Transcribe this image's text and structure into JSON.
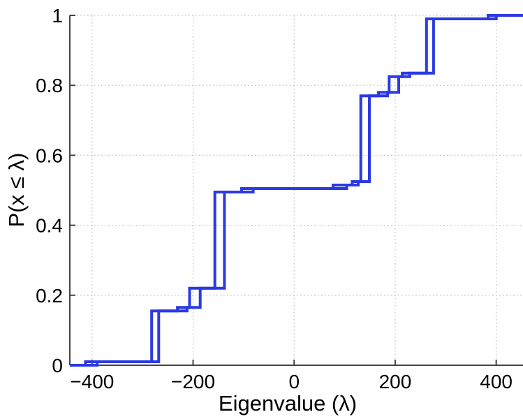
{
  "chart_data": {
    "type": "line",
    "subtype": "empirical-cdf-step-plot",
    "title": "",
    "xlabel": "Eigenvalue (λ)",
    "ylabel": "P(x ≤ λ)",
    "xlim": [
      -444,
      453
    ],
    "ylim": [
      0,
      1
    ],
    "xticks": [
      -400,
      -200,
      0,
      200,
      400
    ],
    "xtick_labels": [
      "−400",
      "−200",
      "0",
      "200",
      "400"
    ],
    "yticks": [
      0,
      0.2,
      0.4,
      0.6,
      0.8,
      1
    ],
    "ytick_labels": [
      "0",
      "0.2",
      "0.4",
      "0.6",
      "0.8",
      "1"
    ],
    "grid": "dotted",
    "legend": "none",
    "line_color": "#2b3ae2",
    "grid_color": "#c4c4c4",
    "axis_color": "#444444",
    "series": [
      {
        "name": "ecdf-curve-leading",
        "x": [
          -413,
          -282,
          -231,
          -207,
          -157,
          -104,
          77,
          115,
          132,
          167,
          188,
          214,
          262,
          384
        ],
        "levels": [
          0.01,
          0.155,
          0.165,
          0.22,
          0.495,
          0.505,
          0.515,
          0.525,
          0.77,
          0.78,
          0.825,
          0.835,
          0.99,
          1.0
        ]
      },
      {
        "name": "ecdf-curve-lagging",
        "x": [
          -390,
          -268,
          -212,
          -186,
          -138,
          -81,
          104,
          127,
          149,
          185,
          207,
          229,
          276,
          400
        ],
        "levels": [
          0.01,
          0.155,
          0.165,
          0.22,
          0.495,
          0.505,
          0.515,
          0.525,
          0.77,
          0.78,
          0.825,
          0.835,
          0.99,
          1.0
        ]
      }
    ]
  }
}
